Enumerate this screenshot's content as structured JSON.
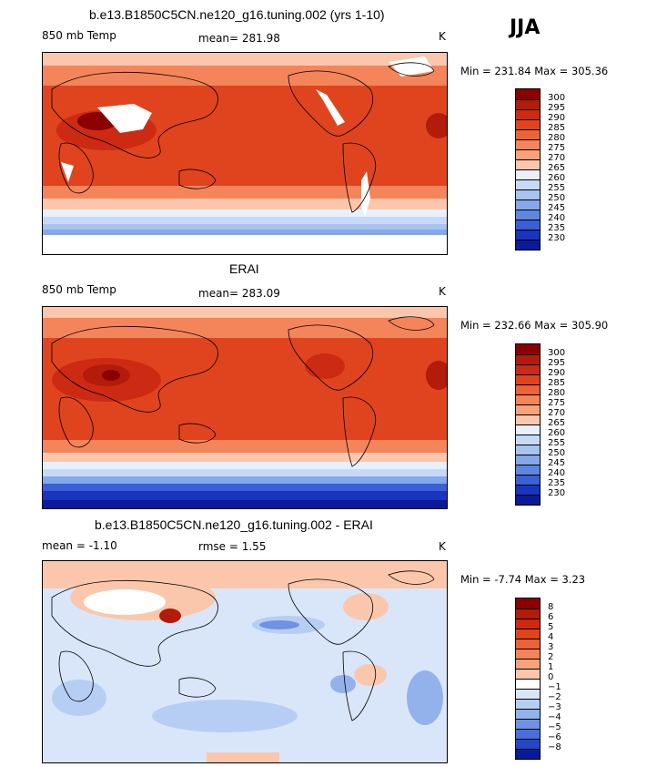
{
  "season": "JJA",
  "panels": [
    {
      "title": "b.e13.B1850C5CN.ne120_g16.tuning.002 (yrs 1-10)",
      "left_label": "850 mb Temp",
      "center_label": "mean=  281.98",
      "units": "K",
      "minmax": "Min = 231.84 Max = 305.36",
      "levels": [
        "300",
        "295",
        "290",
        "285",
        "280",
        "275",
        "270",
        "265",
        "260",
        "255",
        "250",
        "245",
        "240",
        "235",
        "230"
      ],
      "colors": [
        "#8b0000",
        "#b31b0a",
        "#cc2a12",
        "#e0441e",
        "#ed6236",
        "#f4845a",
        "#f8a27c",
        "#fbc7ac",
        "#e8f0fb",
        "#c6daf7",
        "#a7c3f0",
        "#84a9ea",
        "#5f87e0",
        "#3a5fd6",
        "#1a34bf",
        "#0a1a99"
      ]
    },
    {
      "title": "ERAI",
      "left_label": "850 mb Temp",
      "center_label": "mean=  283.09",
      "units": "K",
      "minmax": "Min = 232.66 Max = 305.90",
      "levels": [
        "300",
        "295",
        "290",
        "285",
        "280",
        "275",
        "270",
        "265",
        "260",
        "255",
        "250",
        "245",
        "240",
        "235",
        "230"
      ],
      "colors": [
        "#8b0000",
        "#b31b0a",
        "#cc2a12",
        "#e0441e",
        "#ed6236",
        "#f4845a",
        "#f8a27c",
        "#fbc7ac",
        "#e8f0fb",
        "#c6daf7",
        "#a7c3f0",
        "#84a9ea",
        "#5f87e0",
        "#3a5fd6",
        "#1a34bf",
        "#0a1a99"
      ]
    },
    {
      "title": "b.e13.B1850C5CN.ne120_g16.tuning.002 - ERAI",
      "left_label": "mean =   -1.10",
      "center_label": "rmse =     1.55",
      "units": "K",
      "minmax": "Min =   -7.74 Max =     3.23",
      "levels": [
        "8",
        "6",
        "5",
        "4",
        "3",
        "2",
        "1",
        "0",
        "−1",
        "−2",
        "−3",
        "−4",
        "−5",
        "−6",
        "−8"
      ],
      "colors": [
        "#8b0000",
        "#b31b0a",
        "#cc2a12",
        "#e0441e",
        "#ed6236",
        "#f4845a",
        "#f8a27c",
        "#fbc7ac",
        "#ffffff",
        "#d9e6fa",
        "#b7cef4",
        "#93b2ec",
        "#6f92e3",
        "#4a6edb",
        "#2546c8",
        "#0a1a99"
      ]
    }
  ],
  "chart_data": [
    {
      "type": "heatmap",
      "title": "b.e13.B1850C5CN.ne120_g16.tuning.002 (yrs 1-10)",
      "variable": "850 mb Temp",
      "units": "K",
      "mean": 281.98,
      "min": 231.84,
      "max": 305.36,
      "contour_levels": [
        230,
        235,
        240,
        245,
        250,
        255,
        260,
        265,
        270,
        275,
        280,
        285,
        290,
        295,
        300
      ],
      "season": "JJA"
    },
    {
      "type": "heatmap",
      "title": "ERAI",
      "variable": "850 mb Temp",
      "units": "K",
      "mean": 283.09,
      "min": 232.66,
      "max": 305.9,
      "contour_levels": [
        230,
        235,
        240,
        245,
        250,
        255,
        260,
        265,
        270,
        275,
        280,
        285,
        290,
        295,
        300
      ],
      "season": "JJA"
    },
    {
      "type": "heatmap",
      "title": "b.e13.B1850C5CN.ne120_g16.tuning.002 - ERAI",
      "units": "K",
      "mean": -1.1,
      "rmse": 1.55,
      "min": -7.74,
      "max": 3.23,
      "contour_levels": [
        -8,
        -6,
        -5,
        -4,
        -3,
        -2,
        -1,
        0,
        1,
        2,
        3,
        4,
        5,
        6,
        8
      ],
      "season": "JJA"
    }
  ]
}
